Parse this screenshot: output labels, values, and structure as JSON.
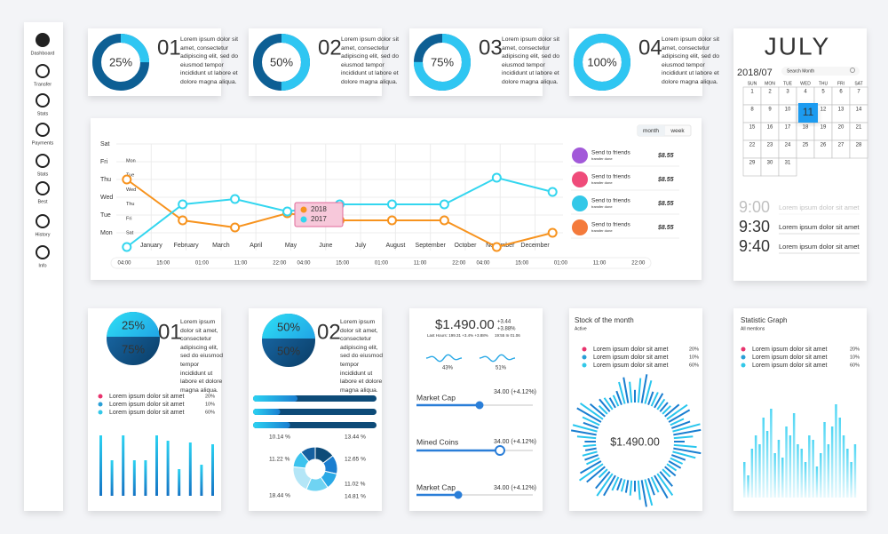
{
  "sidebar": {
    "items": [
      "Dashboard",
      "Transfer",
      "Stats",
      "Payments",
      "Stats",
      "Best",
      "History",
      "Info"
    ]
  },
  "top_cards": [
    {
      "number": "01",
      "gauge": {
        "value": 25,
        "label": "25%"
      },
      "text": "Lorem ipsum dolor sit amet, consectetur adipiscing elit, sed do eiusmod tempor incididunt ut labore et dolore magna aliqua."
    },
    {
      "number": "02",
      "gauge": {
        "value": 50,
        "label": "50%"
      },
      "text": "Lorem ipsum dolor sit amet, consectetur adipiscing elit, sed do eiusmod tempor incididunt ut labore et dolore magna aliqua."
    },
    {
      "number": "03",
      "gauge": {
        "value": 75,
        "label": "75%"
      },
      "text": "Lorem ipsum dolor sit amet, consectetur adipiscing elit, sed do eiusmod tempor incididunt ut labore et dolore magna aliqua."
    },
    {
      "number": "04",
      "gauge": {
        "value": 100,
        "label": "100%"
      },
      "text": "Lorem ipsum dolor sit amet, consectetur adipiscing elit, sed do eiusmod tempor incididunt ut labore et dolore magna aliqua."
    }
  ],
  "line_chart": {
    "type": "line",
    "toggle": [
      "month",
      "week"
    ],
    "x": [
      -0.7,
      0.9,
      2.4,
      3.9,
      5.4,
      6.9,
      8.4,
      9.9,
      11.5
    ],
    "series": [
      {
        "name": "2018",
        "color": "#f7931e",
        "values": [
          3.0,
          0.7,
          0.3,
          1.1,
          0.7,
          0.7,
          0.7,
          -0.8,
          0.0
        ]
      },
      {
        "name": "2017",
        "color": "#33d6ef",
        "values": [
          -0.8,
          1.6,
          1.9,
          1.2,
          1.6,
          1.6,
          1.6,
          3.1,
          2.3
        ]
      }
    ],
    "xlim": [
      -1,
      11.8
    ],
    "xticks": [
      {
        "value": 0,
        "label": "January"
      },
      {
        "value": 1,
        "label": "February"
      },
      {
        "value": 2,
        "label": "March"
      },
      {
        "value": 3,
        "label": "April"
      },
      {
        "value": 4,
        "label": "May"
      },
      {
        "value": 5,
        "label": "June"
      },
      {
        "value": 6,
        "label": "July"
      },
      {
        "value": 7,
        "label": "August"
      },
      {
        "value": 8,
        "label": "September"
      },
      {
        "value": 9,
        "label": "October"
      },
      {
        "value": 10,
        "label": "November"
      },
      {
        "value": 11,
        "label": "December"
      }
    ],
    "ylim": [
      -1,
      5
    ],
    "yticks": [
      {
        "value": 0,
        "label": "Mon"
      },
      {
        "value": 1,
        "label": "Tue"
      },
      {
        "value": 2,
        "label": "Wed"
      },
      {
        "value": 3,
        "label": "Thu"
      },
      {
        "value": 4,
        "label": "Fri"
      },
      {
        "value": 5,
        "label": "Sat"
      }
    ],
    "inner_day_labels": [
      "Mon",
      "Tue",
      "Wed",
      "Thu",
      "Fri",
      "Sat"
    ],
    "time_labels": [
      "04:00",
      "15:00",
      "01:00",
      "11:00",
      "22:00",
      "04:00",
      "15:00",
      "01:00",
      "11:00",
      "22:00",
      "04:00",
      "15:00",
      "01:00",
      "11:00",
      "22:00"
    ],
    "grid": true,
    "side_list": [
      {
        "title": "Send to friends",
        "subtitle": "transfer done",
        "amount": "$8.55"
      },
      {
        "title": "Send to friends",
        "subtitle": "transfer done",
        "amount": "$8.55"
      },
      {
        "title": "Send to friends",
        "subtitle": "transfer done",
        "amount": "$8.55"
      },
      {
        "title": "Send to friends",
        "subtitle": "transfer done",
        "amount": "$8.55"
      }
    ]
  },
  "calendar": {
    "month": "JULY",
    "period": "2018/07",
    "search": "Search Month",
    "weekdays": [
      "SUN",
      "MON",
      "TUE",
      "WED",
      "THU",
      "FRI",
      "SAT"
    ],
    "days": [
      "1",
      "2",
      "3",
      "4",
      "5",
      "6",
      "7",
      "8",
      "9",
      "10",
      "11",
      "12",
      "13",
      "14",
      "15",
      "16",
      "17",
      "18",
      "19",
      "20",
      "21",
      "22",
      "23",
      "24",
      "25",
      "26",
      "27",
      "28",
      "29",
      "30",
      "31"
    ],
    "selected_day": "11",
    "schedule": [
      {
        "time": "9:00",
        "text": "Lorem ipsum dolor sit amet"
      },
      {
        "time": "9:30",
        "text": "Lorem ipsum dolor sit amet"
      },
      {
        "time": "9:40",
        "text": "Lorem ipsum dolor sit amet"
      }
    ]
  },
  "split_card": {
    "number": "01",
    "top_label": "25%",
    "bottom_label": "75%",
    "text": "Lorem ipsum dolor sit amet, consectetur adipiscing elit, sed do eiusmod tempor incididunt ut labore et dolore magna aliqua.",
    "legend": [
      {
        "label": "Lorem ipsum dolor sit amet",
        "value": "20%",
        "color": "#e8336d"
      },
      {
        "label": "Lorem ipsum dolor sit amet",
        "value": "10%",
        "color": "#2a9fd6"
      },
      {
        "label": "Lorem ipsum dolor sit amet",
        "value": "60%",
        "color": "#33c8e8"
      }
    ],
    "bars": {
      "ylim": [
        0,
        80
      ],
      "values": [
        68,
        40,
        68,
        40,
        40,
        68,
        62,
        30,
        60,
        35,
        58
      ]
    }
  },
  "donut_card": {
    "number": "02",
    "top_label": "50%",
    "bottom_label": "50%",
    "text": "Lorem ipsum dolor sit amet, consectetur adipiscing elit, sed do eiusmod tempor incididunt ut labore et dolore magna aliqua.",
    "segments": [
      {
        "value": 13.44,
        "label": "13.44 %"
      },
      {
        "value": 12.65,
        "label": "12.65 %"
      },
      {
        "value": 11.02,
        "label": "11.02 %"
      },
      {
        "value": 14.81,
        "label": "14.81 %"
      },
      {
        "value": 18.44,
        "label": "18.44 %"
      },
      {
        "value": 11.22,
        "label": "11.22 %"
      },
      {
        "value": 10.14,
        "label": "10.14 %"
      }
    ]
  },
  "price_card": {
    "price": "$1.490.00",
    "change": "+3.44",
    "change_pct": "+3.88%",
    "details": "Last Hours: 199.31 +3.4% +3.88%",
    "time": "19:55 In 01.06",
    "waves": [
      "43%",
      "51%"
    ],
    "sliders": [
      {
        "label": "Market Cap",
        "value": "34.00 (+4.12%)"
      },
      {
        "label": "Mined Coins",
        "value": "34.00 (+4.12%)"
      },
      {
        "label": "Market Cap",
        "value": "34.00 (+4.12%)"
      }
    ]
  },
  "stock_card": {
    "title": "Stock of the month",
    "subtitle": "Active",
    "legend": [
      {
        "label": "Lorem ipsum dolor sit amet",
        "value": "20%",
        "color": "#e8336d"
      },
      {
        "label": "Lorem ipsum dolor sit amet",
        "value": "10%",
        "color": "#2a9fd6"
      },
      {
        "label": "Lorem ipsum dolor sit amet",
        "value": "60%",
        "color": "#33c8e8"
      }
    ],
    "center": "$1.490.00"
  },
  "stat_card": {
    "title": "Statistic Graph",
    "subtitle": "All mentions",
    "legend": [
      {
        "label": "Lorem ipsum dolor sit amet",
        "value": "20%",
        "color": "#e8336d"
      },
      {
        "label": "Lorem ipsum dolor sit amet",
        "value": "10%",
        "color": "#2a9fd6"
      },
      {
        "label": "Lorem ipsum dolor sit amet",
        "value": "60%",
        "color": "#33c8e8"
      }
    ],
    "bars": {
      "ylim": [
        0,
        120
      ],
      "values": [
        40,
        25,
        55,
        70,
        60,
        90,
        75,
        100,
        50,
        65,
        45,
        80,
        70,
        95,
        60,
        55,
        40,
        70,
        65,
        35,
        50,
        85,
        60,
        80,
        105,
        90,
        70,
        55,
        40,
        60
      ]
    }
  }
}
